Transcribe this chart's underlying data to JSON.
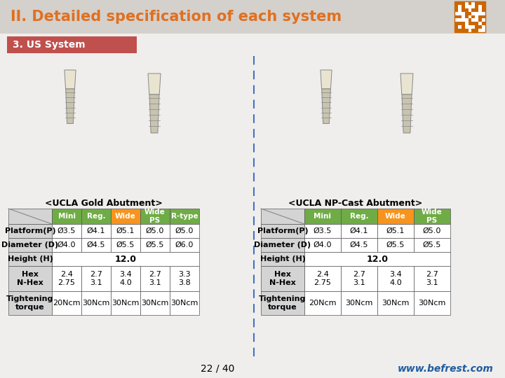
{
  "title": "II. Detailed specification of each system",
  "subtitle": "3. US System",
  "left_table_title": "<UCLA Gold Abutment>",
  "right_table_title": "<UCLA NP-Cast Abutment>",
  "left_table": {
    "headers": [
      "",
      "Mini",
      "Reg.",
      "Wide",
      "Wide\nPS",
      "R-type"
    ],
    "rows": [
      [
        "Platform(P)",
        "Ø3.5",
        "Ø4.1",
        "Ø5.1",
        "Ø5.0",
        "Ø5.0"
      ],
      [
        "Diameter (D)",
        "Ø4.0",
        "Ø4.5",
        "Ø5.5",
        "Ø5.5",
        "Ø6.0"
      ],
      [
        "Height (H)",
        "12.0",
        "",
        "",
        "",
        ""
      ],
      [
        "Hex\nN-Hex",
        "2.4\n2.75",
        "2.7\n3.1",
        "3.4\n4.0",
        "2.7\n3.1",
        "3.3\n3.8"
      ],
      [
        "Tightening\ntorque",
        "20Ncm",
        "30Ncm",
        "30Ncm",
        "30Ncm",
        "30Ncm"
      ]
    ]
  },
  "right_table": {
    "headers": [
      "",
      "Mini",
      "Reg.",
      "Wide",
      "Wide\nPS"
    ],
    "rows": [
      [
        "Platform(P)",
        "Ø3.5",
        "Ø4.1",
        "Ø5.1",
        "Ø5.0"
      ],
      [
        "Diameter (D)",
        "Ø4.0",
        "Ø4.5",
        "Ø5.5",
        "Ø5.5"
      ],
      [
        "Height (H)",
        "12.0",
        "",
        "",
        ""
      ],
      [
        "Hex\nN-Hex",
        "2.4\n2.75",
        "2.7\n3.1",
        "3.4\n4.0",
        "2.7\n3.1"
      ],
      [
        "Tightening\ntorque",
        "20Ncm",
        "30Ncm",
        "30Ncm",
        "30Ncm"
      ]
    ]
  },
  "bg_color": "#f0eeec",
  "title_bar_color": "#d4d0cc",
  "subtitle_bar_color": "#c0504d",
  "title_color": "#e07020",
  "subtitle_text_color": "#ffffff",
  "table_header_colors_left": [
    "#6fac46",
    "#6fac46",
    "#f7941d",
    "#6fac46",
    "#6fac46"
  ],
  "table_header_colors_right": [
    "#6fac46",
    "#6fac46",
    "#f7941d",
    "#6fac46"
  ],
  "divider_color": "#4472c4",
  "cell_gray": "#d4d4d4",
  "cell_white": "#ffffff",
  "footer_text": "22 / 40",
  "footer_link": "www.befrest.com",
  "footer_link_color": "#1f5c9e",
  "title_fontsize": 15,
  "subtitle_fontsize": 10,
  "table_title_fontsize": 9,
  "cell_fontsize": 8,
  "header_fontsize": 7.5
}
